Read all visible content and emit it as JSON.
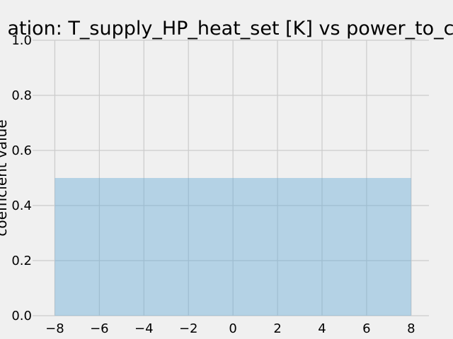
{
  "chart_data": {
    "type": "area",
    "title": "ation: T_supply_HP_heat_set [K] vs power_to_c",
    "xlabel": "",
    "ylabel": "coefficient value",
    "xlim": [
      -9.0,
      8.8
    ],
    "ylim": [
      0.0,
      1.0
    ],
    "xticks": [
      -8,
      -6,
      -4,
      -2,
      0,
      2,
      4,
      6,
      8
    ],
    "xtick_labels": [
      "−8",
      "−6",
      "−4",
      "−2",
      "0",
      "2",
      "4",
      "6",
      "8"
    ],
    "yticks": [
      0.0,
      0.2,
      0.4,
      0.6,
      0.8,
      1.0
    ],
    "ytick_labels": [
      "0.0",
      "0.2",
      "0.4",
      "0.6",
      "0.8",
      "1.0"
    ],
    "grid": true,
    "series": [
      {
        "x": [
          -8,
          8
        ],
        "y": [
          0.5,
          0.5
        ],
        "color": "#6baed6"
      }
    ]
  },
  "colors": {
    "background": "#f0f0f0",
    "grid": "#cbcbcb",
    "fill": "#b3d6ea"
  }
}
